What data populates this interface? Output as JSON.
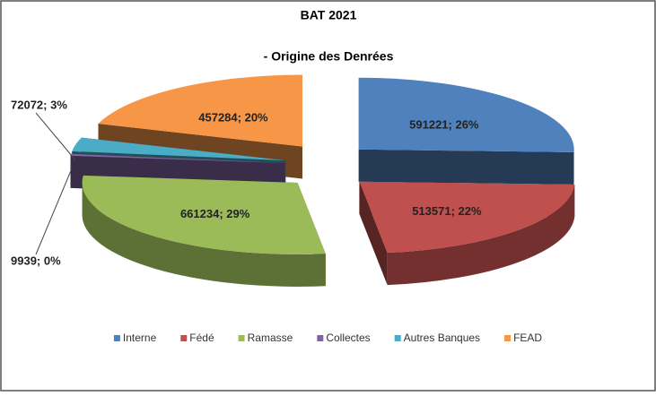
{
  "chart_data": {
    "type": "pie3d",
    "title": "BAT 2021",
    "subtitle": "- Origine des Denrées",
    "categories": [
      "Interne",
      "Fédé",
      "Ramasse",
      "Collectes",
      "Autres Banques",
      "FEAD"
    ],
    "values": [
      591221,
      513571,
      661234,
      9939,
      72072,
      457284
    ],
    "value_labels": [
      "591221; 26%",
      "513571; 22%",
      "661234; 29%",
      "9939; 0%",
      "72072; 3%",
      "457284; 20%"
    ],
    "colors": [
      "#4f81bd",
      "#c0504d",
      "#9bbb59",
      "#8064a2",
      "#4bacc6",
      "#f79646"
    ],
    "legend": "bottom"
  }
}
